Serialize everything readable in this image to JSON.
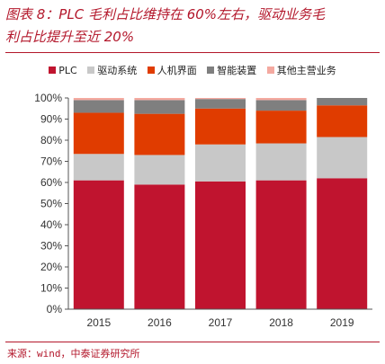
{
  "figure": {
    "title_line1": "图表 8：PLC 毛利占比维持在 60%左右，驱动业务毛",
    "title_line2": "利占比提升至近 20%",
    "source": "来源：wind，中泰证券研究所"
  },
  "chart_data": {
    "type": "bar",
    "stacked": true,
    "categories": [
      "2015",
      "2016",
      "2017",
      "2018",
      "2019"
    ],
    "ylim": [
      0,
      100
    ],
    "yticks": [
      0,
      10,
      20,
      30,
      40,
      50,
      60,
      70,
      80,
      90,
      100
    ],
    "ytick_labels": [
      "0%",
      "10%",
      "20%",
      "30%",
      "40%",
      "50%",
      "60%",
      "70%",
      "80%",
      "90%",
      "100%"
    ],
    "legend_position": "top",
    "grid": false,
    "series": [
      {
        "name": "PLC",
        "color": "#c0142f",
        "values": [
          61,
          59,
          60.5,
          61,
          62
        ]
      },
      {
        "name": "驱动系统",
        "color": "#c8c8c8",
        "values": [
          12.5,
          14,
          17.5,
          17.5,
          19.5
        ]
      },
      {
        "name": "人机界面",
        "color": "#e03c00",
        "values": [
          19.5,
          19.5,
          17,
          15.5,
          15
        ]
      },
      {
        "name": "智能装置",
        "color": "#7f7f7f",
        "values": [
          6,
          6.5,
          4.5,
          5,
          3.5
        ]
      },
      {
        "name": "其他主营业务",
        "color": "#f4a9a0",
        "values": [
          1,
          1,
          0.5,
          1,
          0
        ]
      }
    ]
  }
}
